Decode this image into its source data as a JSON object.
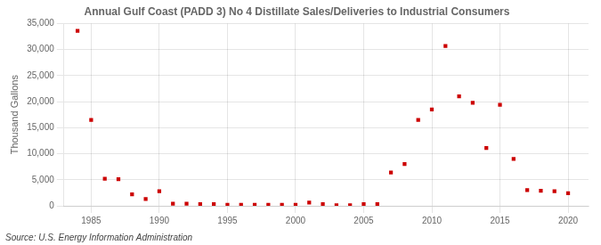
{
  "chart_data": {
    "type": "scatter",
    "title": "Annual Gulf Coast (PADD 3) No 4 Distillate Sales/Deliveries to Industrial Consumers",
    "ylabel": "Thousand Gallons",
    "annotation": "Source: U.S. Energy Information Administration",
    "color": "#cc0000",
    "marker": "square",
    "grid": true,
    "x": [
      1984,
      1985,
      1986,
      1987,
      1988,
      1989,
      1990,
      1991,
      1992,
      1993,
      1994,
      1995,
      1996,
      1997,
      1998,
      1999,
      2000,
      2001,
      2002,
      2003,
      2004,
      2005,
      2006,
      2007,
      2008,
      2009,
      2010,
      2011,
      2012,
      2013,
      2014,
      2015,
      2016,
      2017,
      2018,
      2019,
      2020
    ],
    "values": [
      33600,
      16500,
      5200,
      5100,
      2200,
      1300,
      2800,
      400,
      400,
      300,
      300,
      200,
      200,
      200,
      200,
      200,
      200,
      600,
      300,
      100,
      100,
      300,
      300,
      6400,
      8000,
      16500,
      18500,
      30700,
      21000,
      19800,
      11100,
      19400,
      9000,
      3000,
      2900,
      2800,
      2400
    ],
    "xlim": [
      1983,
      2021.5
    ],
    "ylim": [
      0,
      35000
    ],
    "xticks": [
      1985,
      1990,
      1995,
      2000,
      2005,
      2010,
      2015,
      2020
    ],
    "yticks": [
      0,
      {
        "value": 5000,
        "label": "5,000"
      },
      {
        "value": 10000,
        "label": "10,000"
      },
      {
        "value": 15000,
        "label": "15,000"
      },
      {
        "value": 20000,
        "label": "20,000"
      },
      {
        "value": 25000,
        "label": "25,000"
      },
      {
        "value": 30000,
        "label": "30,000"
      },
      {
        "value": 35000,
        "label": "35,000"
      }
    ]
  }
}
